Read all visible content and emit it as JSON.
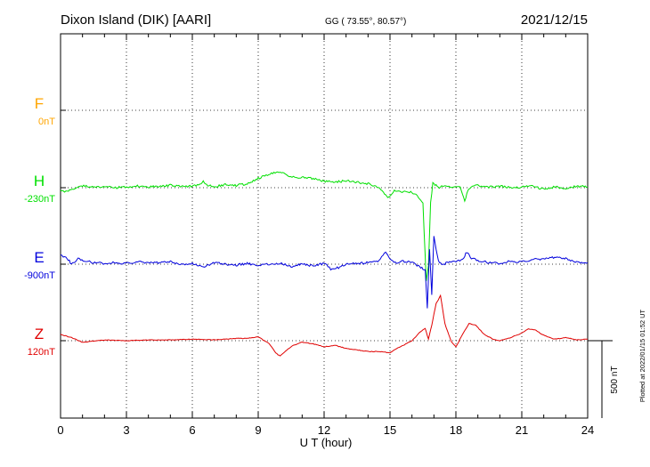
{
  "header": {
    "station": "Dixon Island (DIK)  [AARI]",
    "coords": "GG ( 73.55°,  80.57°)",
    "date": "2021/12/15"
  },
  "footer_note": "Plotted at 2022/01/15 01:52 UT",
  "scale_bar_label": "500 nT",
  "chart_data": {
    "type": "line",
    "title": "Dixon Island (DIK)  [AARI]",
    "xlabel": "U T (hour)",
    "ylabel": "",
    "xlim": [
      0,
      24
    ],
    "xticks": [
      "0",
      "3",
      "6",
      "9",
      "12",
      "15",
      "18",
      "21",
      "24"
    ],
    "scale_bar_nT": 500,
    "grid": true,
    "series": [
      {
        "name": "F",
        "baseline": "0nT",
        "color": "#ffa500",
        "x": [],
        "values": []
      },
      {
        "name": "H",
        "baseline": "-230nT",
        "color": "#00e000",
        "x": [
          0,
          0.3,
          0.7,
          1.0,
          1.5,
          2.0,
          2.5,
          3.0,
          3.5,
          4.0,
          4.5,
          5.0,
          5.5,
          6.0,
          6.4,
          6.5,
          6.7,
          7.0,
          7.5,
          8.0,
          8.5,
          9.0,
          9.3,
          9.6,
          10.0,
          10.3,
          10.6,
          11.0,
          11.5,
          12.0,
          12.5,
          13.0,
          13.5,
          14.0,
          14.4,
          14.7,
          14.9,
          15.2,
          15.5,
          16.0,
          16.3,
          16.5,
          16.65,
          16.75,
          16.85,
          16.95,
          17.1,
          17.25,
          17.5,
          17.8,
          18.2,
          18.4,
          18.55,
          18.7,
          19.0,
          19.5,
          20.0,
          20.5,
          21.0,
          21.5,
          22.0,
          22.5,
          23.0,
          23.5,
          24.0
        ],
        "values": [
          -25,
          -20,
          0,
          15,
          5,
          5,
          0,
          5,
          10,
          5,
          10,
          15,
          10,
          10,
          20,
          40,
          15,
          5,
          20,
          15,
          25,
          60,
          75,
          90,
          100,
          80,
          70,
          65,
          60,
          40,
          35,
          45,
          35,
          25,
          10,
          -30,
          -70,
          -20,
          -25,
          -30,
          -60,
          -100,
          -600,
          -500,
          -100,
          30,
          15,
          0,
          15,
          5,
          10,
          -90,
          -20,
          5,
          15,
          5,
          10,
          0,
          5,
          10,
          -10,
          5,
          -5,
          10,
          5
        ]
      },
      {
        "name": "E",
        "baseline": "-900nT",
        "color": "#0000dd",
        "x": [
          0,
          0.3,
          0.5,
          0.8,
          1.2,
          1.5,
          2.0,
          2.5,
          3.0,
          3.5,
          4.0,
          4.5,
          5.0,
          5.5,
          6.0,
          6.5,
          7.0,
          7.5,
          8.0,
          8.5,
          9.0,
          9.5,
          10.0,
          10.5,
          11.0,
          11.5,
          12.0,
          12.3,
          12.6,
          13.0,
          13.5,
          14.0,
          14.5,
          14.8,
          15.0,
          15.3,
          15.6,
          16.0,
          16.4,
          16.6,
          16.7,
          16.8,
          16.9,
          17.0,
          17.1,
          17.2,
          17.35,
          17.6,
          18.0,
          18.3,
          18.5,
          18.7,
          19.0,
          19.5,
          20.0,
          20.5,
          21.0,
          21.5,
          22.0,
          22.5,
          23.0,
          23.5,
          24.0
        ],
        "values": [
          60,
          40,
          0,
          35,
          20,
          10,
          5,
          10,
          5,
          15,
          10,
          10,
          15,
          0,
          5,
          -20,
          10,
          0,
          -5,
          5,
          -10,
          0,
          5,
          -15,
          0,
          -10,
          5,
          -30,
          -25,
          0,
          5,
          10,
          20,
          80,
          40,
          5,
          20,
          10,
          -20,
          -40,
          -280,
          100,
          -200,
          180,
          100,
          20,
          -5,
          10,
          20,
          30,
          80,
          40,
          25,
          10,
          5,
          20,
          15,
          30,
          35,
          45,
          35,
          15,
          10
        ]
      },
      {
        "name": "Z",
        "baseline": "120nT",
        "color": "#e00000",
        "x": [
          0,
          0.5,
          1.0,
          2.0,
          3.0,
          4.0,
          5.0,
          6.0,
          7.0,
          8.0,
          8.5,
          9.0,
          9.5,
          9.8,
          10.0,
          10.3,
          10.6,
          11.0,
          11.5,
          12.0,
          12.5,
          13.0,
          13.5,
          14.0,
          14.5,
          14.8,
          15.0,
          15.3,
          15.6,
          16.0,
          16.4,
          16.6,
          16.75,
          16.9,
          17.1,
          17.3,
          17.5,
          17.8,
          18.0,
          18.3,
          18.6,
          18.9,
          19.3,
          19.7,
          20.0,
          20.5,
          21.0,
          21.3,
          21.6,
          22.0,
          22.5,
          23.0,
          23.5,
          24.0
        ],
        "values": [
          40,
          20,
          -10,
          5,
          0,
          5,
          5,
          10,
          5,
          15,
          15,
          25,
          -20,
          -80,
          -100,
          -60,
          -30,
          -10,
          -20,
          -40,
          -30,
          -50,
          -60,
          -70,
          -70,
          -75,
          -80,
          -50,
          -30,
          0,
          60,
          80,
          10,
          100,
          240,
          290,
          110,
          -10,
          -40,
          40,
          110,
          100,
          40,
          10,
          0,
          20,
          50,
          75,
          70,
          35,
          10,
          20,
          5,
          10
        ]
      }
    ]
  }
}
